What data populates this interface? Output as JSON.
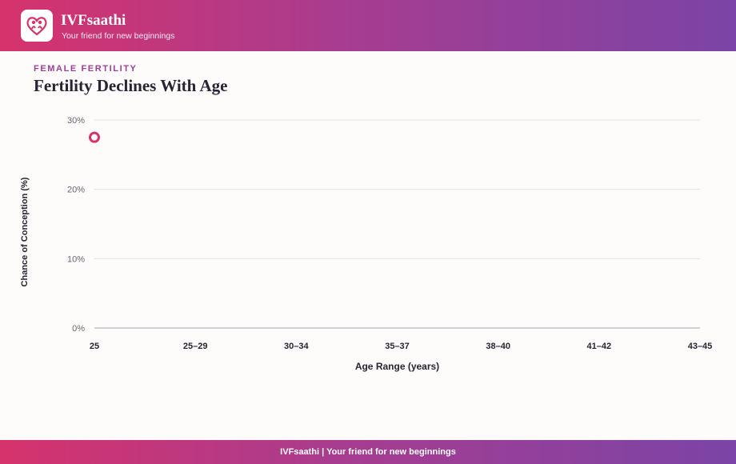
{
  "brand": {
    "name": "IVFsaathi",
    "tagline": "Your friend for new beginnings"
  },
  "section": {
    "eyebrow": "FEMALE FERTILITY",
    "title": "Fertility Declines With Age"
  },
  "chart_data": {
    "type": "scatter",
    "categories": [
      "25",
      "25–29",
      "30–34",
      "35–37",
      "38–40",
      "41–42",
      "43–45"
    ],
    "series": [
      {
        "color": "#d6336c",
        "points": [
          {
            "x": "25",
            "y": 27.5
          }
        ]
      }
    ],
    "xlabel": "Age Range (years)",
    "ylabel": "Chance of Conception (%)",
    "ylim": [
      0,
      30
    ],
    "yticks": [
      0,
      10,
      20,
      30
    ],
    "ytick_suffix": "%",
    "grid": true
  },
  "footer": {
    "text": "IVFsaathi | Your friend for new beginnings"
  }
}
